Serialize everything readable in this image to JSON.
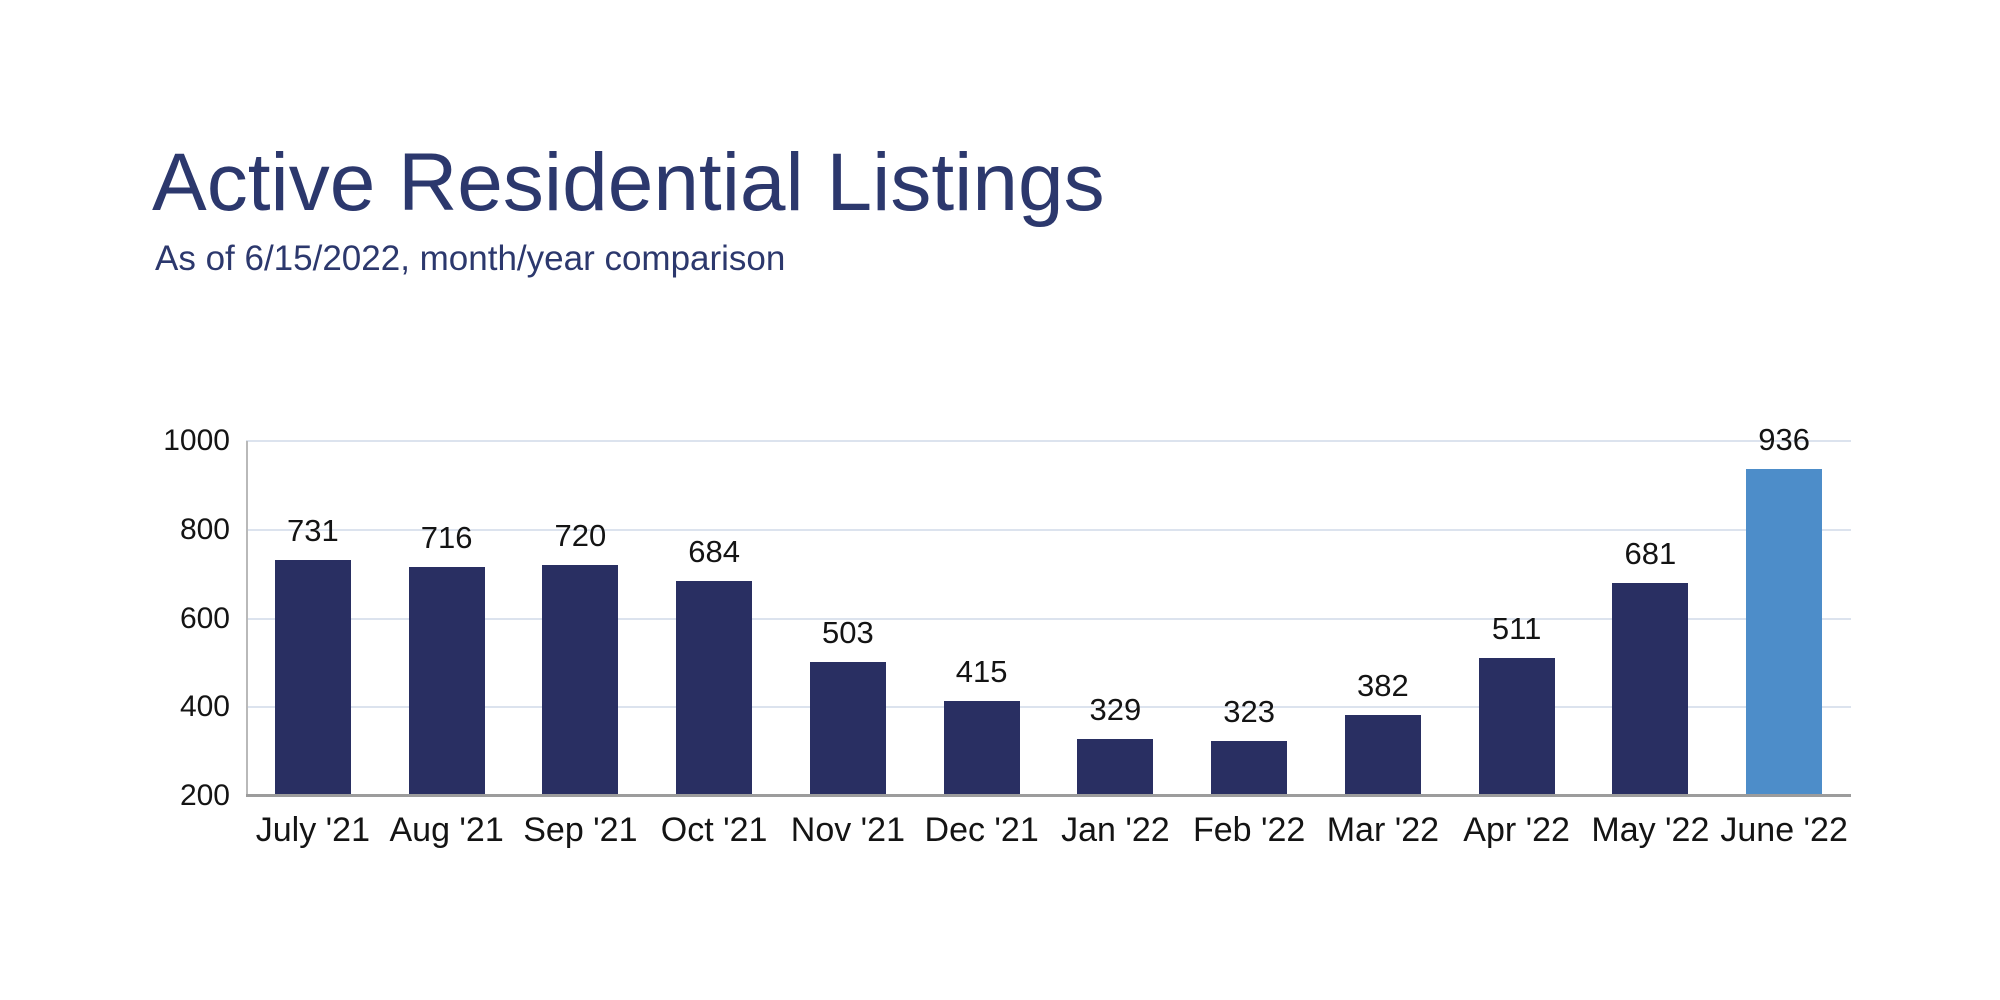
{
  "page": {
    "background": "#ffffff"
  },
  "chart_data": {
    "type": "bar",
    "title": "Active Residential Listings",
    "subtitle": "As of 6/15/2022, month/year comparison",
    "categories": [
      "July '21",
      "Aug '21",
      "Sep '21",
      "Oct '21",
      "Nov '21",
      "Dec '21",
      "Jan '22",
      "Feb '22",
      "Mar '22",
      "Apr '22",
      "May '22",
      "June '22"
    ],
    "values": [
      731,
      716,
      720,
      684,
      503,
      415,
      329,
      323,
      382,
      511,
      681,
      936
    ],
    "highlight_index": 11,
    "highlight_category": "June '22",
    "xlabel": "",
    "ylabel": "",
    "ylim": [
      200,
      1000
    ],
    "yticks": [
      1000,
      800,
      600,
      400,
      200
    ],
    "grid": true,
    "legend": "none",
    "colors": {
      "bar": "#292f62",
      "highlight_bar": "#4d8dc9",
      "title_text": "#2c386d",
      "subtitle_text": "#2c386d",
      "grid_line": "#dce3ee",
      "y_axis_line": "#b9b9b9",
      "x_axis_line": "#9c9c9c",
      "tick_text": "#141414",
      "value_text": "#141414"
    }
  }
}
